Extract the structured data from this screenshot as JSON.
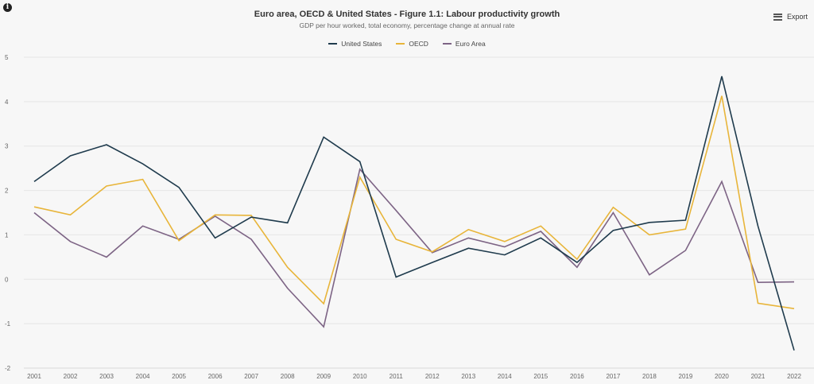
{
  "header": {
    "title": "Euro area, OECD & United States - Figure 1.1: Labour productivity growth",
    "subtitle": "GDP per hour worked, total economy, percentage change at annual rate",
    "info_icon": "info-icon",
    "export_label": "Export",
    "export_icon": "hamburger-menu-icon"
  },
  "legend": [
    {
      "label": "United States",
      "color": "#1f3b4d"
    },
    {
      "label": "OECD",
      "color": "#e8b53a"
    },
    {
      "label": "Euro Area",
      "color": "#7d6485"
    }
  ],
  "chart_data": {
    "type": "line",
    "title": "Euro area, OECD & United States - Figure 1.1: Labour productivity growth",
    "subtitle": "GDP per hour worked, total economy, percentage change at annual rate",
    "xlabel": "",
    "ylabel": "",
    "ylim": [
      -2,
      5
    ],
    "yticks": [
      5,
      4,
      3,
      2,
      1,
      0,
      -1,
      -2
    ],
    "grid": true,
    "legend_position": "top",
    "categories": [
      "2001",
      "2002",
      "2003",
      "2004",
      "2005",
      "2006",
      "2007",
      "2008",
      "2009",
      "2010",
      "2011",
      "2012",
      "2013",
      "2014",
      "2015",
      "2016",
      "2017",
      "2018",
      "2019",
      "2020",
      "2021",
      "2022"
    ],
    "series": [
      {
        "name": "United States",
        "color": "#1f3b4d",
        "values": [
          2.2,
          2.78,
          3.03,
          2.6,
          2.07,
          0.93,
          1.4,
          1.27,
          3.2,
          2.65,
          0.05,
          0.38,
          0.7,
          0.55,
          0.93,
          0.38,
          1.1,
          1.28,
          1.33,
          4.57,
          1.2,
          -1.6
        ]
      },
      {
        "name": "OECD",
        "color": "#e8b53a",
        "values": [
          1.63,
          1.45,
          2.1,
          2.25,
          0.87,
          1.45,
          1.44,
          0.27,
          -0.55,
          2.3,
          0.9,
          0.62,
          1.12,
          0.85,
          1.2,
          0.45,
          1.62,
          1.0,
          1.13,
          4.13,
          -0.54,
          -0.66
        ]
      },
      {
        "name": "Euro Area",
        "color": "#7d6485",
        "values": [
          1.5,
          0.85,
          0.5,
          1.2,
          0.9,
          1.42,
          0.9,
          -0.2,
          -1.07,
          2.48,
          1.55,
          0.6,
          0.93,
          0.73,
          1.08,
          0.27,
          1.5,
          0.1,
          0.65,
          2.2,
          -0.07,
          -0.06
        ]
      }
    ]
  }
}
